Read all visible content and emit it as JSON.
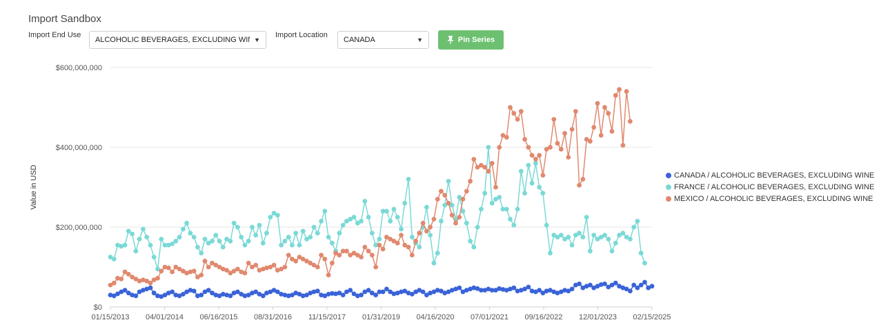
{
  "page": {
    "title": "Import Sandbox"
  },
  "controls": {
    "end_use_label": "Import End Use",
    "end_use_value": "ALCOHOLIC BEVERAGES, EXCLUDING WINE",
    "location_label": "Import Location",
    "location_value": "CANADA",
    "pin_label": "Pin Series",
    "pin_icon": "pin-icon",
    "caret_icon": "caret-down-icon"
  },
  "chart_data": {
    "type": "line",
    "title": "",
    "xlabel": "",
    "ylabel": "Value in USD",
    "ylim": [
      0,
      600000000
    ],
    "y_ticks": [
      0,
      200000000,
      400000000,
      600000000
    ],
    "y_tick_labels": [
      "$0",
      "$200,000,000",
      "$400,000,000",
      "$600,000,000"
    ],
    "x_tick_labels": [
      "01/15/2013",
      "04/01/2014",
      "06/16/2015",
      "08/31/2016",
      "11/15/2017",
      "01/31/2019",
      "04/16/2020",
      "07/01/2021",
      "09/16/2022",
      "12/01/2023",
      "02/15/2025"
    ],
    "x_period": "monthly",
    "grid": "horizontal",
    "legend_position": "right",
    "series": [
      {
        "name": "CANADA / ALCOHOLIC BEVERAGES, EXCLUDING WINE",
        "color": "#3a63d8",
        "values": [
          30,
          28,
          33,
          38,
          42,
          35,
          30,
          28,
          38,
          42,
          45,
          48,
          35,
          28,
          26,
          30,
          35,
          38,
          30,
          28,
          32,
          38,
          42,
          40,
          28,
          30,
          38,
          42,
          35,
          30,
          28,
          32,
          30,
          28,
          35,
          38,
          32,
          28,
          30,
          35,
          38,
          32,
          28,
          35,
          38,
          42,
          38,
          32,
          30,
          28,
          30,
          35,
          32,
          28,
          30,
          35,
          38,
          40,
          30,
          28,
          32,
          34,
          33,
          35,
          30,
          38,
          42,
          33,
          28,
          30,
          38,
          42,
          35,
          30,
          38,
          38,
          45,
          38,
          33,
          35,
          38,
          40,
          35,
          32,
          38,
          42,
          38,
          30,
          35,
          38,
          42,
          40,
          35,
          38,
          42,
          45,
          48,
          38,
          42,
          45,
          48,
          46,
          42,
          42,
          45,
          42,
          42,
          46,
          44,
          42,
          45,
          48,
          40,
          42,
          45,
          50,
          40,
          38,
          42,
          35,
          40,
          42,
          38,
          35,
          38,
          42,
          40,
          45,
          55,
          58,
          48,
          52,
          55,
          48,
          52,
          56,
          58,
          50,
          55,
          60,
          52,
          48,
          45,
          40,
          55,
          48,
          55,
          62,
          48,
          52
        ]
      },
      {
        "name": "FRANCE / ALCOHOLIC BEVERAGES, EXCLUDING WINE",
        "color": "#7ad9d6",
        "values": [
          125,
          120,
          155,
          152,
          155,
          190,
          183,
          140,
          170,
          195,
          175,
          155,
          125,
          95,
          170,
          155,
          155,
          158,
          165,
          175,
          195,
          210,
          185,
          175,
          150,
          135,
          170,
          160,
          165,
          180,
          165,
          150,
          170,
          165,
          210,
          200,
          175,
          155,
          165,
          200,
          180,
          205,
          160,
          185,
          225,
          235,
          230,
          155,
          165,
          175,
          155,
          185,
          155,
          190,
          170,
          175,
          200,
          185,
          215,
          240,
          175,
          160,
          140,
          185,
          205,
          215,
          220,
          225,
          210,
          215,
          265,
          225,
          185,
          155,
          170,
          240,
          240,
          215,
          245,
          225,
          195,
          260,
          320,
          175,
          160,
          150,
          200,
          250,
          180,
          110,
          135,
          215,
          255,
          315,
          255,
          220,
          275,
          240,
          210,
          165,
          150,
          200,
          245,
          285,
          400,
          260,
          270,
          275,
          245,
          245,
          220,
          205,
          245,
          340,
          285,
          355,
          310,
          360,
          300,
          285,
          205,
          135,
          180,
          175,
          180,
          170,
          175,
          155,
          180,
          185,
          175,
          225,
          140,
          180,
          170,
          175,
          180,
          170,
          140,
          160,
          180,
          185,
          175,
          170,
          200,
          215,
          135,
          110
        ]
      },
      {
        "name": "MEXICO / ALCOHOLIC BEVERAGES, EXCLUDING WINE",
        "color": "#e0896e",
        "values": [
          55,
          60,
          72,
          70,
          88,
          82,
          75,
          70,
          65,
          68,
          65,
          60,
          68,
          72,
          90,
          100,
          98,
          88,
          100,
          95,
          90,
          85,
          88,
          90,
          75,
          80,
          115,
          100,
          110,
          105,
          100,
          95,
          92,
          85,
          90,
          95,
          88,
          85,
          110,
          100,
          105,
          92,
          95,
          98,
          100,
          105,
          92,
          95,
          100,
          130,
          120,
          115,
          125,
          120,
          115,
          110,
          105,
          100,
          130,
          120,
          80,
          110,
          135,
          130,
          140,
          140,
          130,
          135,
          130,
          125,
          150,
          140,
          130,
          100,
          155,
          145,
          175,
          170,
          165,
          160,
          180,
          155,
          150,
          130,
          165,
          185,
          210,
          190,
          200,
          220,
          270,
          290,
          280,
          260,
          230,
          210,
          225,
          270,
          290,
          315,
          370,
          350,
          355,
          350,
          340,
          360,
          300,
          400,
          430,
          425,
          500,
          485,
          470,
          490,
          420,
          400,
          380,
          370,
          380,
          330,
          395,
          400,
          470,
          410,
          395,
          435,
          375,
          445,
          490,
          305,
          320,
          420,
          415,
          450,
          510,
          430,
          500,
          485,
          440,
          530,
          545,
          405,
          540,
          465
        ]
      }
    ]
  }
}
